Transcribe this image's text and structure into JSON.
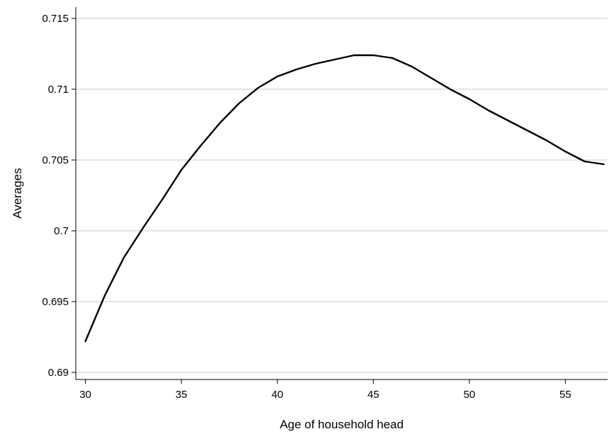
{
  "chart_data": {
    "type": "line",
    "title": "",
    "xlabel": "Age of household head",
    "ylabel": "Averages",
    "xlim": [
      29.5,
      57.2
    ],
    "ylim": [
      0.6895,
      0.7158
    ],
    "xticks": [
      30,
      35,
      40,
      45,
      50,
      55
    ],
    "xtick_labels": [
      "30",
      "35",
      "40",
      "45",
      "50",
      "55"
    ],
    "yticks": [
      0.69,
      0.695,
      0.7,
      0.705,
      0.71,
      0.715
    ],
    "ytick_labels": [
      "0.69",
      "0.695",
      "0.7",
      "0.705",
      "0.71",
      "0.715"
    ],
    "grid": "horizontal",
    "legend": "none",
    "series": [
      {
        "color": "#000000",
        "x": [
          30,
          31,
          32,
          33,
          34,
          35,
          36,
          37,
          38,
          39,
          40,
          41,
          42,
          43,
          44,
          45,
          46,
          47,
          48,
          49,
          50,
          51,
          52,
          53,
          54,
          55,
          56,
          57
        ],
        "y": [
          0.6922,
          0.6954,
          0.6981,
          0.7002,
          0.7022,
          0.7043,
          0.706,
          0.7076,
          0.709,
          0.7101,
          0.7109,
          0.7114,
          0.7118,
          0.7121,
          0.7124,
          0.7124,
          0.7122,
          0.7116,
          0.7108,
          0.71,
          0.7093,
          0.7085,
          0.7078,
          0.7071,
          0.7064,
          0.7056,
          0.7049,
          0.7047
        ]
      }
    ]
  }
}
